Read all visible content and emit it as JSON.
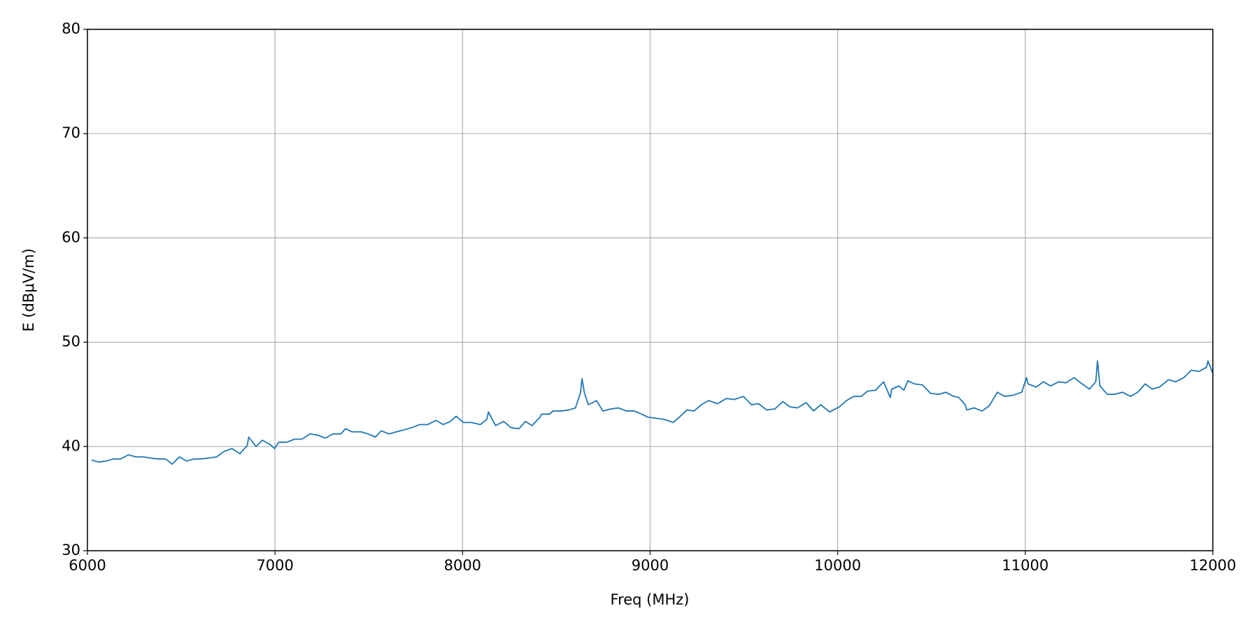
{
  "chart_data": {
    "type": "line",
    "x_label": "Freq (MHz)",
    "y_label": "E (dBμV/m)",
    "color": "#1f77b4",
    "grid": true,
    "xlim": [
      6000,
      12000
    ],
    "xticks": [
      6000,
      7000,
      8000,
      9000,
      10000,
      11000,
      12000
    ],
    "ylim": [
      30,
      80
    ],
    "yticks": [
      30,
      40,
      50,
      60,
      70,
      80
    ],
    "x": [
      6022,
      6060,
      6099,
      6138,
      6176,
      6219,
      6258,
      6297,
      6335,
      6374,
      6417,
      6452,
      6490,
      6529,
      6568,
      6606,
      6649,
      6688,
      6727,
      6770,
      6813,
      6852,
      6860,
      6899,
      6933,
      6972,
      6998,
      7019,
      7062,
      7105,
      7144,
      7187,
      7226,
      7269,
      7308,
      7351,
      7376,
      7411,
      7458,
      7497,
      7536,
      7566,
      7609,
      7647,
      7690,
      7729,
      7772,
      7815,
      7858,
      7897,
      7935,
      7966,
      8004,
      8047,
      8095,
      8129,
      8138,
      8176,
      8219,
      8258,
      8301,
      8335,
      8370,
      8413,
      8421,
      8464,
      8482,
      8525,
      8568,
      8602,
      8628,
      8637,
      8650,
      8671,
      8714,
      8748,
      8791,
      8830,
      8873,
      8916,
      8955,
      8989,
      9032,
      9075,
      9123,
      9161,
      9196,
      9234,
      9273,
      9312,
      9359,
      9406,
      9449,
      9497,
      9540,
      9578,
      9621,
      9665,
      9708,
      9746,
      9785,
      9832,
      9871,
      9910,
      9957,
      10009,
      10047,
      10086,
      10125,
      10159,
      10202,
      10245,
      10280,
      10288,
      10327,
      10353,
      10374,
      10409,
      10452,
      10495,
      10538,
      10576,
      10619,
      10645,
      10680,
      10688,
      10727,
      10770,
      10808,
      10851,
      10890,
      10933,
      10981,
      11006,
      11015,
      11058,
      11097,
      11135,
      11178,
      11217,
      11260,
      11303,
      11342,
      11376,
      11385,
      11398,
      11437,
      11475,
      11518,
      11561,
      11600,
      11639,
      11677,
      11716,
      11763,
      11802,
      11845,
      11884,
      11927,
      11966,
      11974,
      12000
    ],
    "values": [
      38.7,
      38.5,
      38.6,
      38.8,
      38.8,
      39.2,
      39.0,
      39.0,
      38.9,
      38.8,
      38.8,
      38.3,
      39.0,
      38.6,
      38.8,
      38.8,
      38.9,
      39.0,
      39.5,
      39.8,
      39.3,
      40.1,
      40.9,
      40.0,
      40.6,
      40.2,
      39.8,
      40.4,
      40.4,
      40.7,
      40.7,
      41.2,
      41.1,
      40.8,
      41.2,
      41.2,
      41.7,
      41.4,
      41.4,
      41.2,
      40.9,
      41.5,
      41.2,
      41.4,
      41.6,
      41.8,
      42.1,
      42.1,
      42.5,
      42.1,
      42.4,
      42.9,
      42.3,
      42.3,
      42.1,
      42.6,
      43.3,
      42.0,
      42.4,
      41.8,
      41.7,
      42.4,
      42.0,
      42.8,
      43.1,
      43.1,
      43.4,
      43.4,
      43.5,
      43.7,
      45.1,
      46.5,
      45.1,
      44.0,
      44.4,
      43.4,
      43.6,
      43.7,
      43.4,
      43.4,
      43.1,
      42.8,
      42.7,
      42.6,
      42.3,
      42.9,
      43.5,
      43.4,
      44.0,
      44.4,
      44.1,
      44.6,
      44.5,
      44.8,
      44.0,
      44.1,
      43.5,
      43.6,
      44.3,
      43.8,
      43.7,
      44.2,
      43.4,
      44.0,
      43.3,
      43.8,
      44.4,
      44.8,
      44.8,
      45.3,
      45.4,
      46.2,
      44.7,
      45.5,
      45.8,
      45.4,
      46.3,
      46.0,
      45.9,
      45.1,
      45.0,
      45.2,
      44.8,
      44.7,
      44.0,
      43.5,
      43.7,
      43.4,
      43.9,
      45.2,
      44.8,
      44.9,
      45.2,
      46.6,
      46.0,
      45.7,
      46.2,
      45.8,
      46.2,
      46.1,
      46.6,
      46.0,
      45.5,
      46.2,
      48.2,
      45.8,
      45.0,
      45.0,
      45.2,
      44.8,
      45.2,
      46.0,
      45.5,
      45.7,
      46.4,
      46.2,
      46.6,
      47.3,
      47.2,
      47.6,
      48.2,
      47.0
    ]
  }
}
